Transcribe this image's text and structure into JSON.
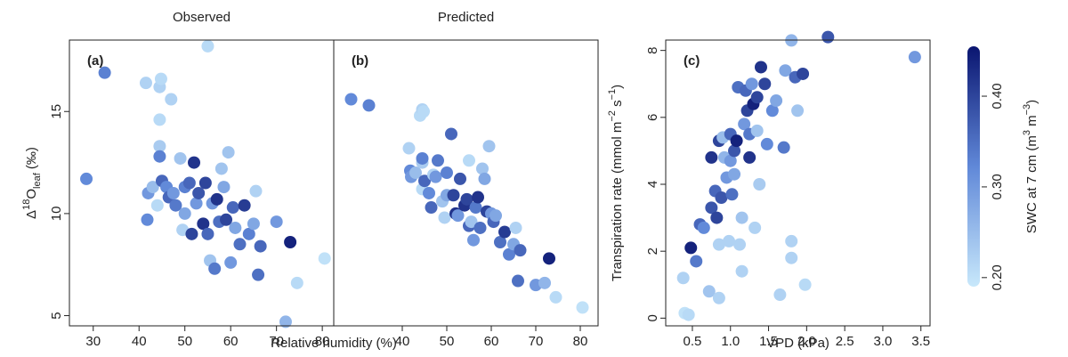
{
  "chart_data": [
    {
      "type": "scatter",
      "title": "Observed",
      "panel_label": "(a)",
      "xlabel": "Relative humidity (%)",
      "ylabel": [
        {
          "t": "Δ"
        },
        {
          "t": "18",
          "s": "sup"
        },
        {
          "t": "O"
        },
        {
          "t": "leaf",
          "s": "sub"
        },
        {
          "t": " (‰)"
        }
      ],
      "xlim": [
        24.8,
        82.5
      ],
      "ylim": [
        4.5,
        18.5
      ],
      "xticks": [
        30,
        40,
        50,
        60,
        70,
        80
      ],
      "yticks": [
        5,
        10,
        15
      ],
      "x": [
        28.5,
        32.5,
        41.5,
        41.8,
        42,
        43,
        44,
        44.5,
        44.8,
        44.5,
        44.5,
        44.5,
        45,
        46,
        46.5,
        47,
        47.5,
        48,
        49,
        49.5,
        50,
        50,
        51,
        51.5,
        52,
        52.5,
        53,
        54,
        54.5,
        55,
        55,
        55.5,
        56,
        56.5,
        57,
        57.5,
        58,
        58.5,
        59,
        59.5,
        60,
        60.5,
        61,
        62,
        63,
        64,
        65,
        65.5,
        66,
        66.5,
        70,
        72,
        73,
        74.5,
        80.5
      ],
      "y": [
        11.7,
        16.9,
        16.4,
        9.7,
        11,
        11.3,
        10.4,
        16.2,
        16.6,
        14.6,
        13.3,
        12.8,
        11.6,
        11.3,
        10.8,
        15.6,
        11,
        10.4,
        12.7,
        9.2,
        11.3,
        10,
        11.5,
        9,
        12.5,
        10.5,
        11,
        9.5,
        11.5,
        18.2,
        9,
        7.7,
        10.5,
        7.3,
        10.7,
        9.6,
        12.2,
        11.3,
        9.7,
        13,
        7.6,
        10.3,
        9.3,
        8.5,
        10.4,
        9,
        9.5,
        11.1,
        7,
        8.4,
        9.6,
        4.7,
        8.6,
        6.6,
        7.8
      ],
      "c": [
        0.32,
        0.33,
        0.22,
        0.32,
        0.3,
        0.25,
        0.21,
        0.22,
        0.21,
        0.21,
        0.23,
        0.33,
        0.36,
        0.32,
        0.36,
        0.22,
        0.3,
        0.34,
        0.24,
        0.22,
        0.33,
        0.28,
        0.36,
        0.4,
        0.42,
        0.3,
        0.38,
        0.42,
        0.4,
        0.21,
        0.36,
        0.24,
        0.3,
        0.34,
        0.42,
        0.35,
        0.24,
        0.28,
        0.4,
        0.24,
        0.3,
        0.36,
        0.28,
        0.35,
        0.41,
        0.33,
        0.28,
        0.22,
        0.35,
        0.36,
        0.3,
        0.26,
        0.44,
        0.21,
        0.2
      ]
    },
    {
      "type": "scatter",
      "title": "Predicted",
      "panel_label": "(b)",
      "xlim": [
        24.6,
        84
      ],
      "ylim": [
        4.5,
        18.5
      ],
      "xticks": [
        40,
        50,
        60,
        70,
        80
      ],
      "x": [
        28.5,
        32.5,
        41.5,
        41.8,
        42,
        43,
        44,
        44.5,
        44.8,
        44.5,
        44.5,
        44.5,
        45,
        46,
        46.5,
        47,
        47.5,
        48,
        49,
        49.5,
        50,
        50,
        51,
        51.5,
        52,
        52.5,
        53,
        54,
        54.5,
        55,
        55,
        55.5,
        56,
        56.5,
        57,
        57.5,
        58,
        58.5,
        59,
        59.5,
        60,
        60.5,
        61,
        62,
        63,
        64,
        65,
        65.5,
        66,
        66.5,
        70,
        72,
        73,
        74.5,
        80.5
      ],
      "y": [
        15.6,
        15.3,
        13.2,
        12.1,
        11.8,
        12,
        14.8,
        15.1,
        15,
        11.2,
        12.5,
        12.7,
        11.6,
        11,
        10.3,
        11.9,
        11.8,
        12.6,
        10.6,
        9.8,
        12,
        10.9,
        13.9,
        10.9,
        10,
        9.9,
        11.7,
        10.4,
        10.7,
        12.6,
        9.4,
        9.6,
        8.7,
        10.3,
        10.8,
        9.3,
        12.2,
        11.7,
        10.1,
        13.3,
        10,
        9.6,
        9.9,
        8.6,
        9.1,
        8,
        8.5,
        9.3,
        6.7,
        8.2,
        6.5,
        6.6,
        7.8,
        5.9,
        5.4
      ],
      "c": [
        0.32,
        0.33,
        0.22,
        0.32,
        0.3,
        0.25,
        0.21,
        0.22,
        0.21,
        0.21,
        0.23,
        0.33,
        0.36,
        0.32,
        0.36,
        0.22,
        0.3,
        0.34,
        0.24,
        0.22,
        0.33,
        0.28,
        0.36,
        0.4,
        0.42,
        0.3,
        0.38,
        0.42,
        0.4,
        0.21,
        0.36,
        0.24,
        0.3,
        0.34,
        0.42,
        0.35,
        0.24,
        0.28,
        0.4,
        0.24,
        0.3,
        0.36,
        0.28,
        0.35,
        0.41,
        0.33,
        0.28,
        0.22,
        0.35,
        0.36,
        0.3,
        0.26,
        0.44,
        0.21,
        0.2
      ]
    },
    {
      "type": "scatter",
      "panel_label": "(c)",
      "xlabel": "VPD (kPa)",
      "ylabel": [
        {
          "t": "Transpiration rate (mmol m"
        },
        {
          "t": "−2",
          "s": "sup"
        },
        {
          "t": " s"
        },
        {
          "t": "−1",
          "s": "sup"
        },
        {
          "t": ")"
        }
      ],
      "xlim": [
        0.15,
        3.62
      ],
      "ylim": [
        -0.23,
        8.31
      ],
      "xticks": [
        0.5,
        {
          "value": 1,
          "label": "1.0"
        },
        1.5,
        {
          "value": 2,
          "label": "2.0"
        },
        2.5,
        {
          "value": 3,
          "label": "3.0"
        },
        3.5
      ],
      "yticks": [
        0,
        2,
        4,
        6,
        8
      ],
      "x": [
        0.38,
        0.4,
        0.45,
        0.48,
        0.55,
        0.6,
        0.65,
        0.72,
        0.75,
        0.75,
        0.8,
        0.82,
        0.85,
        0.85,
        0.85,
        0.88,
        0.9,
        0.92,
        0.95,
        0.98,
        1,
        1,
        1.02,
        1.05,
        1.05,
        1.08,
        1.1,
        1.12,
        1.15,
        1.15,
        1.18,
        1.2,
        1.22,
        1.25,
        1.25,
        1.28,
        1.3,
        1.32,
        1.35,
        1.35,
        1.38,
        1.4,
        1.45,
        1.48,
        1.55,
        1.6,
        1.65,
        1.7,
        1.72,
        1.8,
        1.8,
        1.8,
        1.85,
        1.88,
        1.95,
        1.98,
        2.28,
        3.42
      ],
      "y": [
        1.2,
        0.15,
        0.1,
        2.1,
        1.7,
        2.8,
        2.7,
        0.8,
        3.3,
        4.8,
        3.8,
        3,
        0.6,
        2.2,
        5.3,
        3.6,
        5.4,
        4.8,
        4.2,
        2.3,
        5.5,
        4.7,
        3.7,
        5,
        4.3,
        5.3,
        6.9,
        2.2,
        1.4,
        3,
        5.8,
        6.8,
        6.2,
        4.8,
        5.5,
        7,
        6.4,
        2.7,
        6.6,
        5.6,
        4,
        7.5,
        7,
        5.2,
        6.2,
        6.5,
        0.7,
        5.1,
        7.4,
        8.3,
        2.3,
        1.8,
        7.2,
        6.2,
        7.3,
        1,
        8.4,
        7.8
      ],
      "c": [
        0.22,
        0.2,
        0.21,
        0.44,
        0.34,
        0.36,
        0.32,
        0.24,
        0.38,
        0.42,
        0.36,
        0.4,
        0.22,
        0.22,
        0.4,
        0.38,
        0.25,
        0.26,
        0.3,
        0.22,
        0.36,
        0.3,
        0.35,
        0.38,
        0.28,
        0.44,
        0.35,
        0.22,
        0.22,
        0.24,
        0.3,
        0.36,
        0.4,
        0.42,
        0.34,
        0.3,
        0.44,
        0.22,
        0.4,
        0.24,
        0.23,
        0.42,
        0.4,
        0.32,
        0.32,
        0.28,
        0.22,
        0.34,
        0.28,
        0.26,
        0.22,
        0.22,
        0.36,
        0.24,
        0.4,
        0.21,
        0.38,
        0.3
      ],
      "colorbar": {
        "label": [
          {
            "t": "SWC at 7 cm (m"
          },
          {
            "t": "3",
            "s": "sup"
          },
          {
            "t": " m"
          },
          {
            "t": "−3",
            "s": "sup"
          },
          {
            "t": ")"
          }
        ],
        "lim": [
          0.19,
          0.455
        ],
        "ticks": [
          {
            "value": 0.2,
            "label": "0.20"
          },
          {
            "value": 0.3,
            "label": "0.30"
          },
          {
            "value": 0.4,
            "label": "0.40"
          }
        ],
        "colors": [
          "#c8e8fb",
          "#6088d8",
          "#0a1570"
        ]
      }
    }
  ]
}
